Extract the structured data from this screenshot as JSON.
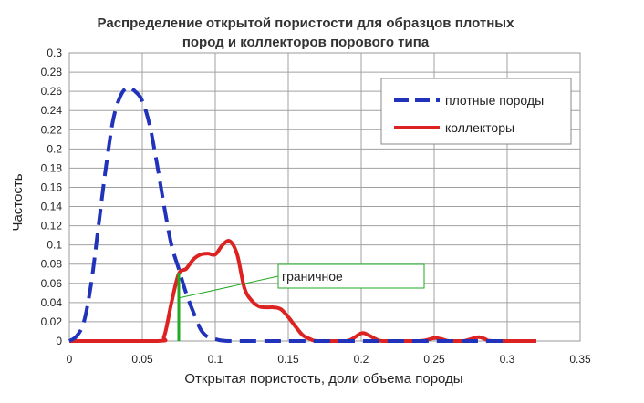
{
  "chart_data": {
    "type": "line",
    "title_line1": "Распределение открытой пористости для образцов плотных",
    "title_line2": "пород и коллекторов порового типа",
    "xlabel": "Открытая пористость, доли объема породы",
    "ylabel": "Частость",
    "xlim": [
      0,
      0.35
    ],
    "ylim": [
      0,
      0.3
    ],
    "x_ticks": [
      "0",
      "0.05",
      "0.1",
      "0.15",
      "0.2",
      "0.25",
      "0.3",
      "0.35"
    ],
    "y_ticks": [
      "0",
      "0.02",
      "0.04",
      "0.06",
      "0.08",
      "0.1",
      "0.12",
      "0.14",
      "0.16",
      "0.18",
      "0.2",
      "0.22",
      "0.24",
      "0.26",
      "0.28",
      "0.3"
    ],
    "grid": true,
    "legend_position": "top-right",
    "series": [
      {
        "name": "плотные породы",
        "color": "#2233bb",
        "style": "dashed",
        "points": [
          [
            0,
            0
          ],
          [
            0.005,
            0.005
          ],
          [
            0.01,
            0.02
          ],
          [
            0.015,
            0.06
          ],
          [
            0.02,
            0.12
          ],
          [
            0.025,
            0.18
          ],
          [
            0.03,
            0.23
          ],
          [
            0.035,
            0.255
          ],
          [
            0.04,
            0.264
          ],
          [
            0.045,
            0.26
          ],
          [
            0.05,
            0.25
          ],
          [
            0.055,
            0.225
          ],
          [
            0.06,
            0.185
          ],
          [
            0.065,
            0.14
          ],
          [
            0.07,
            0.1
          ],
          [
            0.075,
            0.075
          ],
          [
            0.08,
            0.05
          ],
          [
            0.085,
            0.03
          ],
          [
            0.09,
            0.012
          ],
          [
            0.095,
            0.004
          ],
          [
            0.1,
            0.002
          ],
          [
            0.11,
            0
          ],
          [
            0.15,
            0
          ],
          [
            0.2,
            0
          ],
          [
            0.25,
            0
          ],
          [
            0.3,
            0
          ]
        ]
      },
      {
        "name": "коллекторы",
        "color": "#dd2222",
        "style": "solid",
        "points": [
          [
            0,
            0
          ],
          [
            0.06,
            0
          ],
          [
            0.065,
            0.005
          ],
          [
            0.07,
            0.04
          ],
          [
            0.075,
            0.07
          ],
          [
            0.08,
            0.075
          ],
          [
            0.085,
            0.085
          ],
          [
            0.09,
            0.09
          ],
          [
            0.095,
            0.091
          ],
          [
            0.1,
            0.09
          ],
          [
            0.105,
            0.1
          ],
          [
            0.11,
            0.104
          ],
          [
            0.115,
            0.09
          ],
          [
            0.12,
            0.055
          ],
          [
            0.125,
            0.042
          ],
          [
            0.13,
            0.036
          ],
          [
            0.135,
            0.035
          ],
          [
            0.14,
            0.035
          ],
          [
            0.145,
            0.033
          ],
          [
            0.15,
            0.025
          ],
          [
            0.155,
            0.015
          ],
          [
            0.16,
            0.006
          ],
          [
            0.165,
            0.002
          ],
          [
            0.17,
            0
          ],
          [
            0.19,
            0
          ],
          [
            0.2,
            0.008
          ],
          [
            0.205,
            0.006
          ],
          [
            0.21,
            0.002
          ],
          [
            0.215,
            0
          ],
          [
            0.24,
            0
          ],
          [
            0.25,
            0.003
          ],
          [
            0.255,
            0.002
          ],
          [
            0.26,
            0
          ],
          [
            0.27,
            0
          ],
          [
            0.28,
            0.004
          ],
          [
            0.285,
            0.002
          ],
          [
            0.29,
            0
          ],
          [
            0.32,
            0
          ]
        ]
      }
    ],
    "annotation": {
      "label": "граничное",
      "x": 0.075,
      "y": 0.071,
      "color": "#22aa22"
    }
  }
}
